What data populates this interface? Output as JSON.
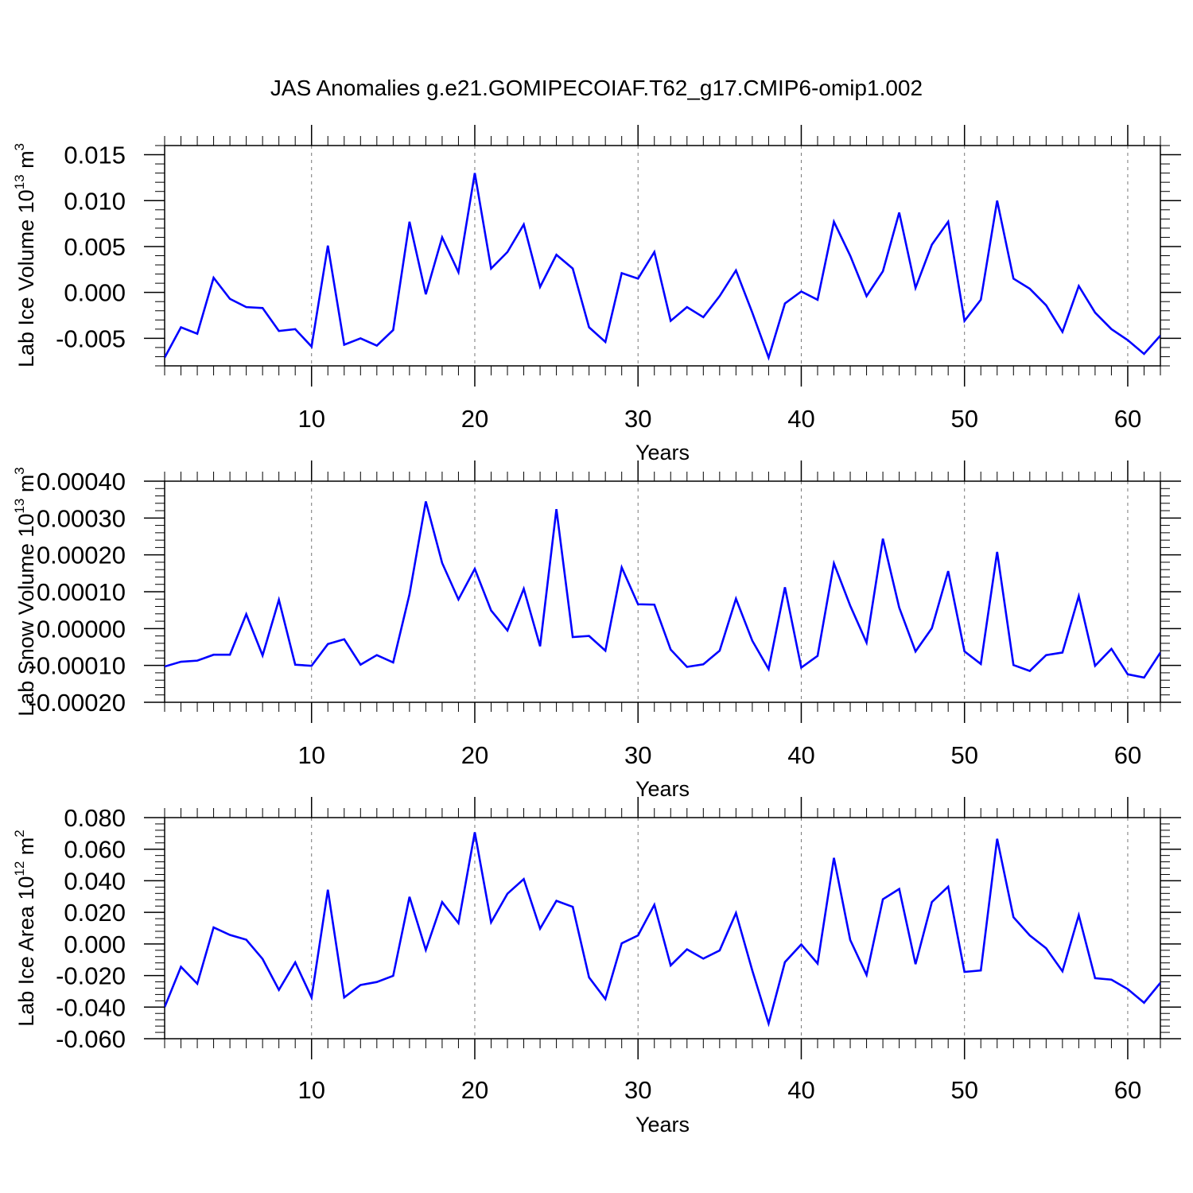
{
  "title": "JAS Anomalies g.e21.GOMIPECOIAF.T62_g17.CMIP6-omip1.002",
  "chart_data": [
    {
      "type": "line",
      "ylabel_base": "Lab Ice Volume 10",
      "ylabel_exp": "13",
      "ylabel_unit": " m",
      "ylabel_unit_exp": "3",
      "xlabel": "Years",
      "xlim": [
        1,
        62
      ],
      "ylim": [
        -0.008,
        0.016
      ],
      "yticks": [
        -0.005,
        0.0,
        0.005,
        0.01,
        0.015
      ],
      "ytick_labels": [
        "-0.005",
        "0.000",
        "0.005",
        "0.010",
        "0.015"
      ],
      "xticks": [
        10,
        20,
        30,
        40,
        50,
        60
      ],
      "xtick_labels": [
        "10",
        "20",
        "30",
        "40",
        "50",
        "60"
      ],
      "grid": "vertical dashed at x ticks",
      "line_color": "#0000ff",
      "series": [
        {
          "name": "Lab Ice Volume",
          "values": [
            -0.0071,
            -0.0038,
            -0.0045,
            0.0016,
            -0.0007,
            -0.0016,
            -0.0017,
            -0.0042,
            -0.004,
            -0.0059,
            0.0051,
            -0.0057,
            -0.005,
            -0.0058,
            -0.0041,
            0.0077,
            -0.0002,
            0.006,
            0.0022,
            0.013,
            0.0026,
            0.0044,
            0.0074,
            0.0006,
            0.0041,
            0.0026,
            -0.0038,
            -0.0054,
            0.0021,
            0.0015,
            0.0044,
            -0.0031,
            -0.0016,
            -0.0027,
            -0.0004,
            0.0024,
            -0.0022,
            -0.0071,
            -0.0012,
            0.0001,
            -0.0008,
            0.0077,
            0.004,
            -0.0004,
            0.0023,
            0.0087,
            0.0005,
            0.0052,
            0.0077,
            -0.0031,
            -0.0008,
            0.01,
            0.0015,
            0.0004,
            -0.0014,
            -0.0043,
            0.0007,
            -0.0022,
            -0.004,
            -0.0052,
            -0.0067,
            -0.0047
          ]
        }
      ]
    },
    {
      "type": "line",
      "ylabel_base": "Lab Snow Volume 10",
      "ylabel_exp": "13",
      "ylabel_unit": " m",
      "ylabel_unit_exp": "3",
      "xlabel": "Years",
      "xlim": [
        1,
        62
      ],
      "ylim": [
        -0.0002,
        0.0004
      ],
      "yticks": [
        -0.0002,
        -0.0001,
        0.0,
        0.0001,
        0.0002,
        0.0003,
        0.0004
      ],
      "ytick_labels": [
        "-0.00020",
        "-0.00010",
        "0.00000",
        "0.00010",
        "0.00020",
        "0.00030",
        "0.00040"
      ],
      "xticks": [
        10,
        20,
        30,
        40,
        50,
        60
      ],
      "xtick_labels": [
        "10",
        "20",
        "30",
        "40",
        "50",
        "60"
      ],
      "grid": "vertical dashed at x ticks",
      "line_color": "#0000ff",
      "series": [
        {
          "name": "Lab Snow Volume",
          "values": [
            -0.000103,
            -9e-05,
            -8.7e-05,
            -7.1e-05,
            -7.1e-05,
            3.9e-05,
            -7.3e-05,
            7.8e-05,
            -9.8e-05,
            -0.000101,
            -4.2e-05,
            -2.9e-05,
            -9.8e-05,
            -7.2e-05,
            -9.2e-05,
            9.3e-05,
            0.000345,
            0.000178,
            7.9e-05,
            0.000162,
            4.9e-05,
            -5e-06,
            0.000108,
            -4.8e-05,
            0.000324,
            -2.3e-05,
            -2e-05,
            -6e-05,
            0.000166,
            6.6e-05,
            6.5e-05,
            -5.7e-05,
            -0.000104,
            -9.7e-05,
            -6e-05,
            8.1e-05,
            -3.3e-05,
            -0.00011,
            0.000112,
            -0.000106,
            -7.4e-05,
            0.000177,
            6.2e-05,
            -3.8e-05,
            0.000244,
            5.7e-05,
            -6.2e-05,
            1e-06,
            0.000156,
            -6.2e-05,
            -9.6e-05,
            0.000208,
            -9.9e-05,
            -0.000115,
            -7.2e-05,
            -6.5e-05,
            8.8e-05,
            -0.000101,
            -5.5e-05,
            -0.000124,
            -0.000133,
            -6.5e-05
          ]
        }
      ]
    },
    {
      "type": "line",
      "ylabel_base": "Lab Ice Area 10",
      "ylabel_exp": "12",
      "ylabel_unit": " m",
      "ylabel_unit_exp": "2",
      "xlabel": "Years",
      "xlim": [
        1,
        62
      ],
      "ylim": [
        -0.06,
        0.08
      ],
      "yticks": [
        -0.06,
        -0.04,
        -0.02,
        0.0,
        0.02,
        0.04,
        0.06,
        0.08
      ],
      "ytick_labels": [
        "-0.060",
        "-0.040",
        "-0.020",
        "0.000",
        "0.020",
        "0.040",
        "0.060",
        "0.080"
      ],
      "xticks": [
        10,
        20,
        30,
        40,
        50,
        60
      ],
      "xtick_labels": [
        "10",
        "20",
        "30",
        "40",
        "50",
        "60"
      ],
      "grid": "vertical dashed at x ticks",
      "line_color": "#0000ff",
      "series": [
        {
          "name": "Lab Ice Area",
          "values": [
            -0.04,
            -0.0145,
            -0.0252,
            0.0105,
            0.0057,
            0.0027,
            -0.0095,
            -0.0291,
            -0.0117,
            -0.0339,
            0.0343,
            -0.0339,
            -0.026,
            -0.0241,
            -0.0202,
            0.0298,
            -0.0038,
            0.0265,
            0.0132,
            0.0707,
            0.0137,
            0.0318,
            0.0411,
            0.0097,
            0.0273,
            0.0235,
            -0.0212,
            -0.0349,
            0.0004,
            0.0054,
            0.0248,
            -0.0136,
            -0.0034,
            -0.0093,
            -0.0041,
            0.0196,
            -0.0168,
            -0.0504,
            -0.0115,
            -0.0003,
            -0.0124,
            0.0545,
            0.0025,
            -0.0196,
            0.0283,
            0.0348,
            -0.0128,
            0.0265,
            0.0363,
            -0.0177,
            -0.0168,
            0.0666,
            0.0169,
            0.0054,
            -0.0027,
            -0.0173,
            0.0182,
            -0.0217,
            -0.0226,
            -0.0286,
            -0.0372,
            -0.0246
          ]
        }
      ]
    }
  ]
}
